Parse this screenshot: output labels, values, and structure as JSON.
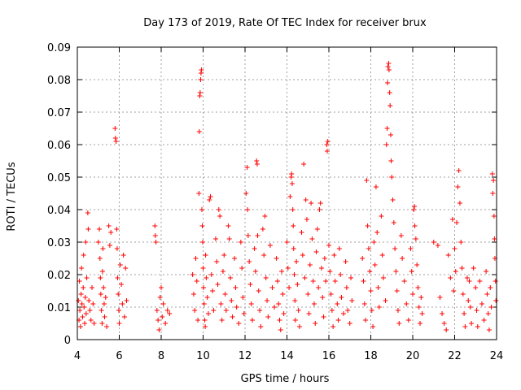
{
  "chart_data": {
    "type": "scatter",
    "title": "Day 173 of 2019, Rate Of TEC Index for receiver brux",
    "xlabel": "GPS time / hours",
    "ylabel": "ROTI / TECUs",
    "xlim": [
      4,
      24
    ],
    "ylim": [
      0,
      0.09
    ],
    "xticks": [
      "4",
      "6",
      "8",
      "10",
      "12",
      "14",
      "16",
      "18",
      "20",
      "22",
      "24"
    ],
    "yticks": [
      "0",
      "0.01",
      "0.02",
      "0.03",
      "0.04",
      "0.05",
      "0.06",
      "0.07",
      "0.08",
      "0.09"
    ],
    "grid": true,
    "marker": "plus",
    "color": "#ff0000",
    "points": [
      [
        4.05,
        0.012
      ],
      [
        4.08,
        0.006
      ],
      [
        4.1,
        0.018
      ],
      [
        4.12,
        0.009
      ],
      [
        4.15,
        0.004
      ],
      [
        4.18,
        0.014
      ],
      [
        4.2,
        0.022
      ],
      [
        4.22,
        0.011
      ],
      [
        4.25,
        0.007
      ],
      [
        4.28,
        0.016
      ],
      [
        4.3,
        0.026
      ],
      [
        4.32,
        0.01
      ],
      [
        4.35,
        0.005
      ],
      [
        4.38,
        0.013
      ],
      [
        4.4,
        0.03
      ],
      [
        4.42,
        0.008
      ],
      [
        4.45,
        0.019
      ],
      [
        4.5,
        0.039
      ],
      [
        4.52,
        0.034
      ],
      [
        4.55,
        0.012
      ],
      [
        4.6,
        0.009
      ],
      [
        4.65,
        0.006
      ],
      [
        4.7,
        0.016
      ],
      [
        4.75,
        0.011
      ],
      [
        4.8,
        0.005
      ],
      [
        5.0,
        0.03
      ],
      [
        5.05,
        0.034
      ],
      [
        5.08,
        0.025
      ],
      [
        5.1,
        0.019
      ],
      [
        5.12,
        0.014
      ],
      [
        5.15,
        0.009
      ],
      [
        5.18,
        0.005
      ],
      [
        5.2,
        0.021
      ],
      [
        5.22,
        0.028
      ],
      [
        5.25,
        0.016
      ],
      [
        5.28,
        0.011
      ],
      [
        5.3,
        0.007
      ],
      [
        5.35,
        0.013
      ],
      [
        5.4,
        0.004
      ],
      [
        5.5,
        0.035
      ],
      [
        5.55,
        0.029
      ],
      [
        5.6,
        0.033
      ],
      [
        5.8,
        0.065
      ],
      [
        5.82,
        0.062
      ],
      [
        5.85,
        0.061
      ],
      [
        5.88,
        0.034
      ],
      [
        5.9,
        0.028
      ],
      [
        5.92,
        0.019
      ],
      [
        5.95,
        0.014
      ],
      [
        5.98,
        0.009
      ],
      [
        6.0,
        0.005
      ],
      [
        6.05,
        0.023
      ],
      [
        6.1,
        0.017
      ],
      [
        6.15,
        0.011
      ],
      [
        6.2,
        0.026
      ],
      [
        6.25,
        0.007
      ],
      [
        6.3,
        0.022
      ],
      [
        6.35,
        0.012
      ],
      [
        7.7,
        0.035
      ],
      [
        7.75,
        0.03
      ],
      [
        7.72,
        0.032
      ],
      [
        7.8,
        0.009
      ],
      [
        7.85,
        0.006
      ],
      [
        7.9,
        0.003
      ],
      [
        7.95,
        0.013
      ],
      [
        8.0,
        0.016
      ],
      [
        8.05,
        0.007
      ],
      [
        8.1,
        0.011
      ],
      [
        8.2,
        0.005
      ],
      [
        8.3,
        0.009
      ],
      [
        8.4,
        0.008
      ],
      [
        9.5,
        0.02
      ],
      [
        9.55,
        0.014
      ],
      [
        9.6,
        0.009
      ],
      [
        9.65,
        0.025
      ],
      [
        9.7,
        0.018
      ],
      [
        9.75,
        0.006
      ],
      [
        9.8,
        0.045
      ],
      [
        9.82,
        0.064
      ],
      [
        9.84,
        0.075
      ],
      [
        9.86,
        0.076
      ],
      [
        9.88,
        0.08
      ],
      [
        9.9,
        0.082
      ],
      [
        9.92,
        0.083
      ],
      [
        9.94,
        0.04
      ],
      [
        9.96,
        0.035
      ],
      [
        9.98,
        0.03
      ],
      [
        10.0,
        0.022
      ],
      [
        10.02,
        0.016
      ],
      [
        10.05,
        0.011
      ],
      [
        10.08,
        0.006
      ],
      [
        10.1,
        0.004
      ],
      [
        10.12,
        0.026
      ],
      [
        10.15,
        0.019
      ],
      [
        10.2,
        0.013
      ],
      [
        10.25,
        0.008
      ],
      [
        10.3,
        0.043
      ],
      [
        10.35,
        0.044
      ],
      [
        10.4,
        0.02
      ],
      [
        10.45,
        0.015
      ],
      [
        10.5,
        0.009
      ],
      [
        10.6,
        0.031
      ],
      [
        10.65,
        0.024
      ],
      [
        10.7,
        0.017
      ],
      [
        10.75,
        0.04
      ],
      [
        10.8,
        0.038
      ],
      [
        10.85,
        0.011
      ],
      [
        10.9,
        0.006
      ],
      [
        10.95,
        0.021
      ],
      [
        11.0,
        0.026
      ],
      [
        11.05,
        0.014
      ],
      [
        11.1,
        0.009
      ],
      [
        11.2,
        0.035
      ],
      [
        11.25,
        0.031
      ],
      [
        11.3,
        0.019
      ],
      [
        11.35,
        0.012
      ],
      [
        11.4,
        0.007
      ],
      [
        11.5,
        0.025
      ],
      [
        11.55,
        0.016
      ],
      [
        11.6,
        0.01
      ],
      [
        11.7,
        0.005
      ],
      [
        11.8,
        0.03
      ],
      [
        11.85,
        0.022
      ],
      [
        11.9,
        0.013
      ],
      [
        11.95,
        0.008
      ],
      [
        12.05,
        0.045
      ],
      [
        12.1,
        0.053
      ],
      [
        12.12,
        0.04
      ],
      [
        12.15,
        0.032
      ],
      [
        12.2,
        0.024
      ],
      [
        12.25,
        0.017
      ],
      [
        12.3,
        0.011
      ],
      [
        12.35,
        0.006
      ],
      [
        12.45,
        0.028
      ],
      [
        12.5,
        0.021
      ],
      [
        12.55,
        0.055
      ],
      [
        12.58,
        0.054
      ],
      [
        12.6,
        0.032
      ],
      [
        12.65,
        0.015
      ],
      [
        12.7,
        0.009
      ],
      [
        12.75,
        0.004
      ],
      [
        12.85,
        0.034
      ],
      [
        12.9,
        0.026
      ],
      [
        12.95,
        0.038
      ],
      [
        13.0,
        0.019
      ],
      [
        13.05,
        0.012
      ],
      [
        13.1,
        0.007
      ],
      [
        13.2,
        0.029
      ],
      [
        13.3,
        0.016
      ],
      [
        13.4,
        0.01
      ],
      [
        13.5,
        0.025
      ],
      [
        13.55,
        0.018
      ],
      [
        13.6,
        0.011
      ],
      [
        13.65,
        0.006
      ],
      [
        13.7,
        0.003
      ],
      [
        13.75,
        0.021
      ],
      [
        13.8,
        0.014
      ],
      [
        13.85,
        0.008
      ],
      [
        14.0,
        0.03
      ],
      [
        14.05,
        0.022
      ],
      [
        14.1,
        0.016
      ],
      [
        14.15,
        0.044
      ],
      [
        14.2,
        0.05
      ],
      [
        14.22,
        0.051
      ],
      [
        14.25,
        0.048
      ],
      [
        14.28,
        0.04
      ],
      [
        14.3,
        0.035
      ],
      [
        14.32,
        0.028
      ],
      [
        14.35,
        0.02
      ],
      [
        14.38,
        0.012
      ],
      [
        14.4,
        0.006
      ],
      [
        14.45,
        0.024
      ],
      [
        14.5,
        0.017
      ],
      [
        14.55,
        0.009
      ],
      [
        14.6,
        0.004
      ],
      [
        14.7,
        0.033
      ],
      [
        14.75,
        0.026
      ],
      [
        14.8,
        0.054
      ],
      [
        14.85,
        0.019
      ],
      [
        14.9,
        0.043
      ],
      [
        14.95,
        0.037
      ],
      [
        15.0,
        0.014
      ],
      [
        15.05,
        0.008
      ],
      [
        15.1,
        0.023
      ],
      [
        15.15,
        0.042
      ],
      [
        15.2,
        0.031
      ],
      [
        15.25,
        0.018
      ],
      [
        15.3,
        0.011
      ],
      [
        15.35,
        0.005
      ],
      [
        15.4,
        0.027
      ],
      [
        15.45,
        0.034
      ],
      [
        15.5,
        0.016
      ],
      [
        15.55,
        0.04
      ],
      [
        15.6,
        0.042
      ],
      [
        15.65,
        0.022
      ],
      [
        15.7,
        0.013
      ],
      [
        15.75,
        0.007
      ],
      [
        15.8,
        0.025
      ],
      [
        15.85,
        0.018
      ],
      [
        15.9,
        0.06
      ],
      [
        15.92,
        0.058
      ],
      [
        15.95,
        0.061
      ],
      [
        16.0,
        0.029
      ],
      [
        16.05,
        0.021
      ],
      [
        16.1,
        0.014
      ],
      [
        16.15,
        0.009
      ],
      [
        16.2,
        0.004
      ],
      [
        16.25,
        0.026
      ],
      [
        16.3,
        0.018
      ],
      [
        16.4,
        0.011
      ],
      [
        16.45,
        0.006
      ],
      [
        16.5,
        0.028
      ],
      [
        16.55,
        0.02
      ],
      [
        16.6,
        0.013
      ],
      [
        16.7,
        0.008
      ],
      [
        16.8,
        0.024
      ],
      [
        16.85,
        0.016
      ],
      [
        16.9,
        0.009
      ],
      [
        17.0,
        0.005
      ],
      [
        17.05,
        0.019
      ],
      [
        17.1,
        0.012
      ],
      [
        17.6,
        0.025
      ],
      [
        17.65,
        0.018
      ],
      [
        17.7,
        0.011
      ],
      [
        17.75,
        0.006
      ],
      [
        17.8,
        0.049
      ],
      [
        17.85,
        0.035
      ],
      [
        17.9,
        0.028
      ],
      [
        17.95,
        0.021
      ],
      [
        18.0,
        0.015
      ],
      [
        18.05,
        0.009
      ],
      [
        18.1,
        0.004
      ],
      [
        18.15,
        0.03
      ],
      [
        18.2,
        0.023
      ],
      [
        18.25,
        0.047
      ],
      [
        18.3,
        0.033
      ],
      [
        18.35,
        0.016
      ],
      [
        18.4,
        0.01
      ],
      [
        18.5,
        0.038
      ],
      [
        18.55,
        0.026
      ],
      [
        18.6,
        0.019
      ],
      [
        18.7,
        0.012
      ],
      [
        18.75,
        0.06
      ],
      [
        18.78,
        0.065
      ],
      [
        18.8,
        0.079
      ],
      [
        18.82,
        0.084
      ],
      [
        18.85,
        0.085
      ],
      [
        18.87,
        0.083
      ],
      [
        18.9,
        0.076
      ],
      [
        18.92,
        0.072
      ],
      [
        18.95,
        0.063
      ],
      [
        18.97,
        0.055
      ],
      [
        19.0,
        0.05
      ],
      [
        19.05,
        0.043
      ],
      [
        19.1,
        0.036
      ],
      [
        19.15,
        0.028
      ],
      [
        19.2,
        0.021
      ],
      [
        19.25,
        0.015
      ],
      [
        19.3,
        0.009
      ],
      [
        19.35,
        0.005
      ],
      [
        19.45,
        0.032
      ],
      [
        19.5,
        0.025
      ],
      [
        19.6,
        0.018
      ],
      [
        19.7,
        0.011
      ],
      [
        19.8,
        0.006
      ],
      [
        19.9,
        0.028
      ],
      [
        19.95,
        0.021
      ],
      [
        20.0,
        0.014
      ],
      [
        20.05,
        0.04
      ],
      [
        20.08,
        0.041
      ],
      [
        20.1,
        0.035
      ],
      [
        20.15,
        0.031
      ],
      [
        20.2,
        0.023
      ],
      [
        20.25,
        0.016
      ],
      [
        20.3,
        0.01
      ],
      [
        20.35,
        0.005
      ],
      [
        20.4,
        0.013
      ],
      [
        20.45,
        0.008
      ],
      [
        21.0,
        0.03
      ],
      [
        21.2,
        0.029
      ],
      [
        21.3,
        0.013
      ],
      [
        21.4,
        0.008
      ],
      [
        21.5,
        0.005
      ],
      [
        21.6,
        0.003
      ],
      [
        21.7,
        0.026
      ],
      [
        21.8,
        0.019
      ],
      [
        21.9,
        0.037
      ],
      [
        21.95,
        0.015
      ],
      [
        22.0,
        0.028
      ],
      [
        22.05,
        0.021
      ],
      [
        22.1,
        0.036
      ],
      [
        22.15,
        0.047
      ],
      [
        22.2,
        0.052
      ],
      [
        22.25,
        0.042
      ],
      [
        22.3,
        0.03
      ],
      [
        22.35,
        0.022
      ],
      [
        22.4,
        0.014
      ],
      [
        22.45,
        0.008
      ],
      [
        22.5,
        0.004
      ],
      [
        22.6,
        0.019
      ],
      [
        22.65,
        0.012
      ],
      [
        22.7,
        0.018
      ],
      [
        22.75,
        0.01
      ],
      [
        22.8,
        0.005
      ],
      [
        22.9,
        0.022
      ],
      [
        23.0,
        0.016
      ],
      [
        23.05,
        0.009
      ],
      [
        23.1,
        0.004
      ],
      [
        23.2,
        0.018
      ],
      [
        23.3,
        0.011
      ],
      [
        23.4,
        0.006
      ],
      [
        23.5,
        0.021
      ],
      [
        23.55,
        0.014
      ],
      [
        23.6,
        0.008
      ],
      [
        23.65,
        0.003
      ],
      [
        23.7,
        0.016
      ],
      [
        23.75,
        0.01
      ],
      [
        23.8,
        0.051
      ],
      [
        23.82,
        0.045
      ],
      [
        23.85,
        0.049
      ],
      [
        23.88,
        0.038
      ],
      [
        23.9,
        0.031
      ],
      [
        23.92,
        0.025
      ],
      [
        23.95,
        0.018
      ],
      [
        23.97,
        0.012
      ]
    ]
  }
}
